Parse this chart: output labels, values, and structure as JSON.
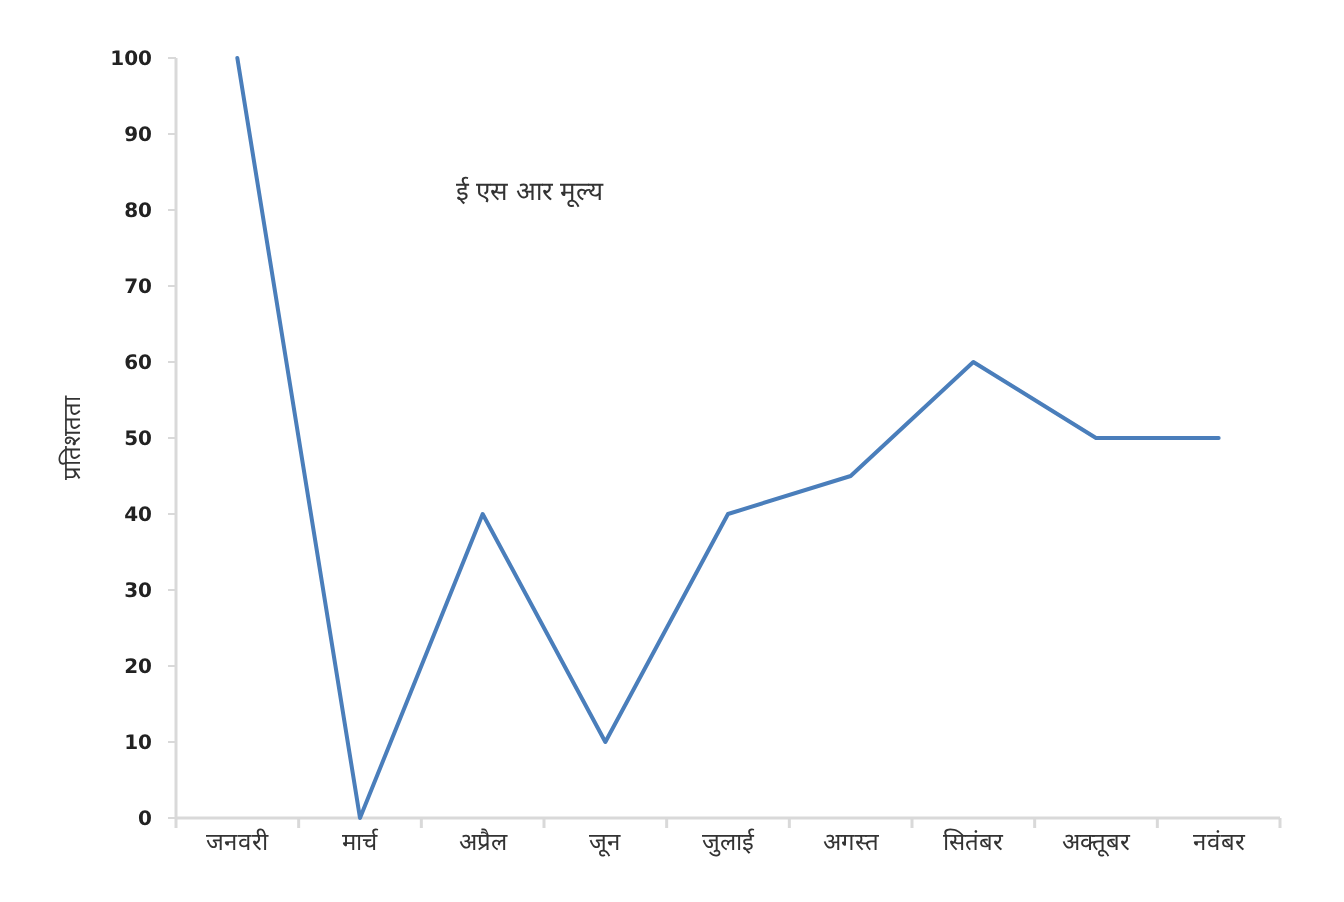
{
  "chart_data": {
    "type": "line",
    "title": "ई एस आर मूल्य",
    "ylabel": "प्रतिशतता",
    "categories": [
      "जनवरी",
      "मार्च",
      "अप्रैल",
      "जून",
      "जुलाई",
      "अगस्त",
      "सितंबर",
      "अक्तूबर",
      "नवंबर"
    ],
    "series": [
      {
        "color": "#4a7ebb",
        "values": [
          100,
          0,
          40,
          10,
          40,
          45,
          60,
          50,
          50
        ]
      }
    ],
    "ylim": [
      0,
      100
    ],
    "yticks": [
      0,
      10,
      20,
      30,
      40,
      50,
      60,
      70,
      80,
      90,
      100
    ],
    "grid": false,
    "marker": "none",
    "line_style": "solid"
  }
}
